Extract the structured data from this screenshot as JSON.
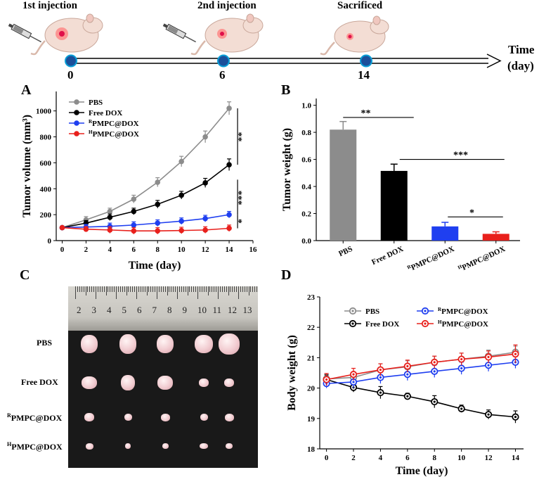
{
  "timeline": {
    "events": [
      {
        "label": "1st injection",
        "day": "0"
      },
      {
        "label": "2nd injection",
        "day": "6"
      },
      {
        "label": "Sacrificed",
        "day": "14"
      }
    ],
    "axis_label_line1": "Time",
    "axis_label_line2": "(day)"
  },
  "panels": {
    "a": "A",
    "b": "B",
    "c": "C",
    "d": "D"
  },
  "photo": {
    "ruler_numbers": [
      "2",
      "3",
      "4",
      "5",
      "6",
      "7",
      "8",
      "9",
      "10",
      "11",
      "12",
      "13"
    ],
    "rows": [
      {
        "label": "PBS",
        "sup": ""
      },
      {
        "label": "Free DOX",
        "sup": ""
      },
      {
        "label": "PMPC@DOX",
        "sup": "R"
      },
      {
        "label": "PMPC@DOX",
        "sup": "H"
      }
    ]
  },
  "colors": {
    "PBS": "#8c8c8c",
    "Free DOX": "#000000",
    "RPMPC@DOX": "#1f3ff0",
    "HPMPC@DOX": "#e8201c"
  },
  "chart_data": [
    {
      "id": "A",
      "type": "line",
      "xlabel": "Time (day)",
      "ylabel": "Tumor volume (mm³)",
      "xlim": [
        -0.5,
        16
      ],
      "ylim": [
        0,
        1150
      ],
      "xticks": [
        0,
        2,
        4,
        6,
        8,
        10,
        12,
        14,
        16
      ],
      "yticks": [
        0,
        200,
        400,
        600,
        800,
        1000
      ],
      "x": [
        0,
        2,
        4,
        6,
        8,
        10,
        12,
        14
      ],
      "series": [
        {
          "name": "PBS",
          "sup": "",
          "values": [
            100,
            160,
            225,
            320,
            450,
            610,
            800,
            1020
          ],
          "errors": [
            10,
            25,
            25,
            30,
            35,
            40,
            45,
            50
          ]
        },
        {
          "name": "Free DOX",
          "sup": "",
          "values": [
            100,
            135,
            180,
            225,
            280,
            350,
            445,
            585
          ],
          "errors": [
            10,
            20,
            25,
            25,
            30,
            30,
            35,
            45
          ]
        },
        {
          "name": "PMPC@DOX",
          "sup": "R",
          "values": [
            100,
            105,
            110,
            120,
            135,
            150,
            170,
            200
          ],
          "errors": [
            10,
            20,
            25,
            25,
            25,
            25,
            25,
            25
          ]
        },
        {
          "name": "PMPC@DOX",
          "sup": "H",
          "values": [
            100,
            88,
            82,
            75,
            75,
            78,
            82,
            95
          ],
          "errors": [
            10,
            20,
            25,
            25,
            25,
            25,
            25,
            25
          ]
        }
      ],
      "annotations": [
        "**",
        "***",
        "*"
      ]
    },
    {
      "id": "B",
      "type": "bar",
      "ylabel": "Tumor weight (g)",
      "ylim": [
        0,
        1.05
      ],
      "yticks": [
        "0.0",
        "0.2",
        "0.4",
        "0.6",
        "0.8",
        "1.0"
      ],
      "categories": [
        {
          "name": "PBS",
          "sup": ""
        },
        {
          "name": "Free DOX",
          "sup": ""
        },
        {
          "name": "PMPC@DOX",
          "sup": "R"
        },
        {
          "name": "PMPC@DOX",
          "sup": "H"
        }
      ],
      "values": [
        0.82,
        0.515,
        0.105,
        0.05
      ],
      "errors": [
        0.06,
        0.05,
        0.03,
        0.015
      ],
      "annotations": [
        "**",
        "***",
        "*"
      ]
    },
    {
      "id": "D",
      "type": "line",
      "xlabel": "Time (day)",
      "ylabel": "Body weight (g)",
      "xlim": [
        -0.5,
        14.6
      ],
      "ylim": [
        18,
        23
      ],
      "xticks": [
        0,
        2,
        4,
        6,
        8,
        10,
        12,
        14
      ],
      "yticks": [
        18,
        19,
        20,
        21,
        22,
        23
      ],
      "x": [
        0,
        2,
        4,
        6,
        8,
        10,
        12,
        14
      ],
      "series": [
        {
          "name": "PBS",
          "sup": "",
          "values": [
            20.3,
            20.35,
            20.6,
            20.7,
            20.85,
            20.95,
            21.05,
            21.18
          ],
          "errors": [
            0.15,
            0.15,
            0.2,
            0.2,
            0.2,
            0.2,
            0.2,
            0.2
          ]
        },
        {
          "name": "Free DOX",
          "sup": "",
          "values": [
            20.28,
            20.02,
            19.85,
            19.73,
            19.55,
            19.32,
            19.13,
            19.05
          ],
          "errors": [
            0.15,
            0.15,
            0.2,
            0.1,
            0.2,
            0.12,
            0.15,
            0.2
          ]
        },
        {
          "name": "PMPC@DOX",
          "sup": "R",
          "values": [
            20.15,
            20.2,
            20.35,
            20.45,
            20.55,
            20.65,
            20.75,
            20.85
          ],
          "errors": [
            0.15,
            0.2,
            0.2,
            0.2,
            0.2,
            0.2,
            0.2,
            0.2
          ]
        },
        {
          "name": "PMPC@DOX",
          "sup": "H",
          "values": [
            20.28,
            20.45,
            20.6,
            20.72,
            20.85,
            20.95,
            21.02,
            21.12
          ],
          "errors": [
            0.2,
            0.2,
            0.2,
            0.2,
            0.2,
            0.2,
            0.2,
            0.3
          ]
        }
      ]
    }
  ]
}
